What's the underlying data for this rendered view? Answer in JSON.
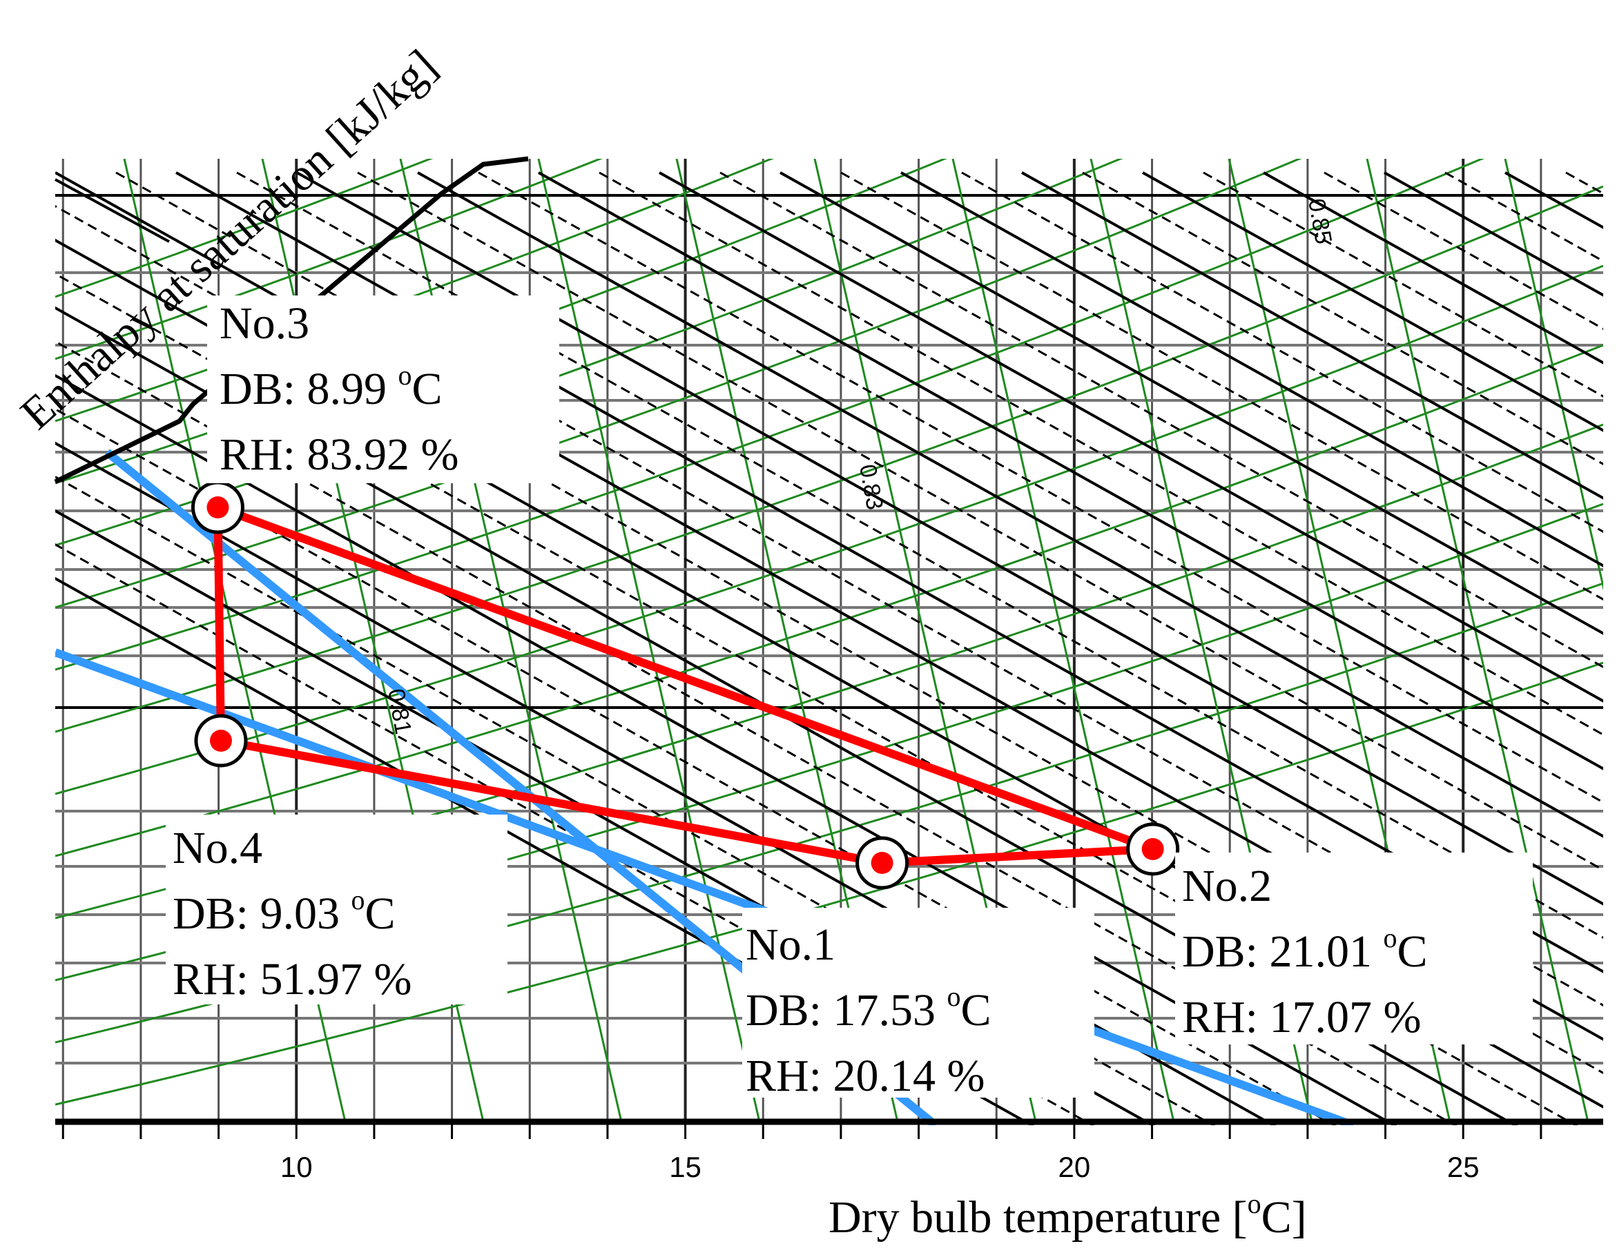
{
  "chart_data": {
    "type": "scatter",
    "subtype": "psychrometric-chart",
    "xlabel": "Dry bulb temperature  [°C]",
    "xlabel_main": "Dry bulb temperature  [",
    "xlabel_sup": "o",
    "xlabel_end": "C]",
    "enthalpy_label": "Enthalpy  at saturation  [kJ/kg]",
    "xlim": [
      6.9,
      26.8
    ],
    "xticks": [
      10,
      15,
      20,
      25
    ],
    "xtick_labels": [
      "10",
      "15",
      "20",
      "25"
    ],
    "specific_volume_labels": [
      "0.81",
      "0.83",
      "0.85"
    ],
    "points": [
      {
        "id": "No.1",
        "label": "No.1",
        "db": 17.53,
        "rh": 20.14,
        "db_line": "DB:  17.53 ",
        "rh_line": "RH:  20.14 %"
      },
      {
        "id": "No.2",
        "label": "No.2",
        "db": 21.01,
        "rh": 17.07,
        "db_line": "DB:  21.01 ",
        "rh_line": "RH:  17.07 %"
      },
      {
        "id": "No.3",
        "label": "No.3",
        "db": 8.99,
        "rh": 83.92,
        "db_line": "DB:  8.99 ",
        "rh_line": "RH:  83.92 %"
      },
      {
        "id": "No.4",
        "label": "No.4",
        "db": 9.03,
        "rh": 51.97,
        "db_line": "DB:  9.03 ",
        "rh_line": "RH:  51.97 %"
      }
    ],
    "unit_sup": "o",
    "unit_end": "C",
    "cycle_order": [
      "No.3",
      "No.4",
      "No.1",
      "No.2"
    ],
    "colors": {
      "cycle": "#ff0000",
      "wet_bulb": "#3399ff",
      "rh_curves": "#1f8a1f",
      "grid": "#555555",
      "enthalpy": "#000000"
    }
  }
}
